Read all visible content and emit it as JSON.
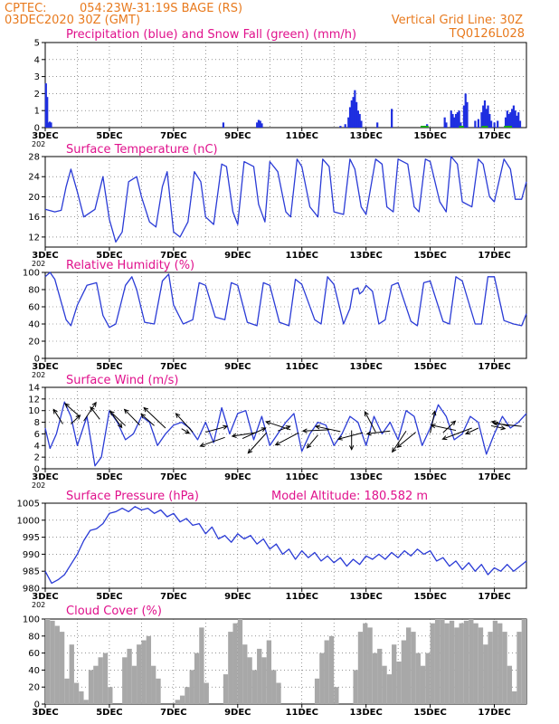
{
  "header": {
    "source": "CPTEC:",
    "location": "054:23W-31:19S  BAGE (RS)",
    "date": "03DEC2020 30Z (GMT)",
    "grid_line": "Vertical Grid Line: 30Z",
    "code": "TQ0126L028"
  },
  "colors": {
    "header": "#e87a1e",
    "title": "#e0118c",
    "line": "#2a3bd6",
    "precip": "#1f2fe0",
    "snow": "#18a818",
    "cloud": "#a8a8a8",
    "arrow": "#000000"
  },
  "x_axis": {
    "day_start": 3,
    "day_end": 18,
    "tick_days": [
      3,
      5,
      7,
      9,
      11,
      13,
      15,
      17
    ],
    "tick_labels": [
      "3DEC",
      "5DEC",
      "7DEC",
      "9DEC",
      "11DEC",
      "13DEC",
      "15DEC",
      "17DEC"
    ]
  },
  "cut_label": "202",
  "chart_data": [
    {
      "id": "precip",
      "type": "bar",
      "title": "Precipitation (blue) and Snow Fall (green) (mm/h)",
      "ylim": [
        0,
        5
      ],
      "yticks": [
        0,
        1,
        2,
        3,
        4,
        5
      ],
      "series": [
        {
          "name": "Precipitation",
          "points": [
            [
              3.02,
              2.6
            ],
            [
              3.06,
              1.8
            ],
            [
              3.1,
              0.3
            ],
            [
              3.14,
              0.35
            ],
            [
              3.18,
              0.3
            ],
            [
              8.55,
              0.3
            ],
            [
              9.6,
              0.3
            ],
            [
              9.65,
              0.45
            ],
            [
              9.7,
              0.4
            ],
            [
              9.75,
              0.25
            ],
            [
              12.2,
              0.1
            ],
            [
              12.35,
              0.2
            ],
            [
              12.45,
              0.6
            ],
            [
              12.5,
              1.2
            ],
            [
              12.55,
              1.6
            ],
            [
              12.6,
              1.8
            ],
            [
              12.65,
              2.2
            ],
            [
              12.7,
              1.5
            ],
            [
              12.75,
              1.0
            ],
            [
              12.8,
              0.8
            ],
            [
              12.85,
              0.4
            ],
            [
              13.35,
              0.3
            ],
            [
              13.8,
              1.1
            ],
            [
              14.9,
              0.2
            ],
            [
              15.45,
              0.6
            ],
            [
              15.5,
              0.3
            ],
            [
              15.65,
              1.0
            ],
            [
              15.7,
              0.8
            ],
            [
              15.75,
              0.6
            ],
            [
              15.8,
              0.8
            ],
            [
              15.85,
              0.9
            ],
            [
              15.9,
              1.0
            ],
            [
              15.95,
              0.3
            ],
            [
              16.05,
              1.3
            ],
            [
              16.1,
              2.0
            ],
            [
              16.15,
              1.5
            ],
            [
              16.4,
              0.4
            ],
            [
              16.5,
              0.5
            ],
            [
              16.6,
              0.9
            ],
            [
              16.65,
              1.3
            ],
            [
              16.7,
              1.6
            ],
            [
              16.75,
              1.1
            ],
            [
              16.8,
              1.3
            ],
            [
              16.85,
              0.8
            ],
            [
              16.9,
              0.4
            ],
            [
              17.0,
              0.3
            ],
            [
              17.1,
              0.4
            ],
            [
              17.35,
              0.6
            ],
            [
              17.4,
              1.0
            ],
            [
              17.45,
              0.8
            ],
            [
              17.5,
              0.9
            ],
            [
              17.55,
              1.1
            ],
            [
              17.6,
              1.3
            ],
            [
              17.65,
              1.0
            ],
            [
              17.7,
              0.7
            ],
            [
              17.75,
              0.9
            ],
            [
              17.8,
              0.4
            ]
          ]
        },
        {
          "name": "Snow Fall",
          "segments": [
            [
              14.7,
              14.95
            ],
            [
              15.9,
              16.05
            ],
            [
              16.6,
              16.8
            ],
            [
              17.3,
              17.55
            ]
          ]
        }
      ]
    },
    {
      "id": "temp",
      "type": "line",
      "title": "Surface Temperature (nC)",
      "ylim": [
        10,
        28
      ],
      "yticks": [
        12,
        16,
        20,
        24,
        28
      ],
      "x": [
        3.0,
        3.3,
        3.5,
        3.65,
        3.8,
        4.0,
        4.2,
        4.55,
        4.8,
        5.0,
        5.2,
        5.4,
        5.6,
        5.85,
        6.0,
        6.25,
        6.45,
        6.65,
        6.8,
        7.0,
        7.2,
        7.45,
        7.65,
        7.85,
        8.0,
        8.25,
        8.5,
        8.65,
        8.85,
        9.0,
        9.2,
        9.5,
        9.65,
        9.85,
        10.0,
        10.25,
        10.5,
        10.65,
        10.85,
        11.0,
        11.25,
        11.5,
        11.65,
        11.85,
        12.0,
        12.3,
        12.5,
        12.65,
        12.85,
        13.0,
        13.3,
        13.5,
        13.65,
        13.85,
        14.0,
        14.3,
        14.5,
        14.65,
        14.85,
        15.0,
        15.3,
        15.5,
        15.65,
        15.85,
        16.0,
        16.3,
        16.5,
        16.65,
        16.85,
        17.0,
        17.3,
        17.5,
        17.65,
        17.85,
        18.0
      ],
      "y": [
        17.5,
        17,
        17.3,
        22,
        25.5,
        21,
        16,
        17.5,
        24,
        15.5,
        11,
        13,
        23,
        24,
        20,
        15,
        14,
        22,
        25,
        13,
        12,
        15,
        25,
        23,
        16,
        14.5,
        26.5,
        26,
        17,
        14.5,
        27,
        26,
        18.5,
        15,
        27,
        25,
        17,
        16,
        27.5,
        26,
        18,
        16,
        27.5,
        26,
        17,
        16.5,
        27.5,
        25.5,
        18,
        16.5,
        27.5,
        26.5,
        18,
        17,
        27.5,
        26.5,
        18,
        17,
        27.5,
        27,
        19,
        17,
        28,
        26.5,
        19,
        18,
        27.5,
        26.5,
        20,
        19,
        27.5,
        25.5,
        19.5,
        19.5,
        23
      ]
    },
    {
      "id": "rh",
      "type": "line",
      "title": "Relative Humidity (%)",
      "ylim": [
        0,
        100
      ],
      "yticks": [
        0,
        20,
        40,
        60,
        80,
        100
      ],
      "x": [
        3.0,
        3.15,
        3.3,
        3.65,
        3.8,
        4.0,
        4.3,
        4.6,
        4.8,
        5.0,
        5.2,
        5.5,
        5.7,
        5.85,
        6.1,
        6.4,
        6.65,
        6.85,
        7.0,
        7.3,
        7.6,
        7.8,
        8.0,
        8.3,
        8.6,
        8.8,
        9.0,
        9.3,
        9.6,
        9.8,
        10.0,
        10.3,
        10.6,
        10.8,
        11.0,
        11.4,
        11.6,
        11.8,
        12.0,
        12.3,
        12.5,
        12.6,
        12.75,
        12.8,
        12.9,
        13.0,
        13.2,
        13.4,
        13.6,
        13.8,
        14.0,
        14.4,
        14.6,
        14.8,
        15.0,
        15.4,
        15.6,
        15.8,
        16.0,
        16.4,
        16.6,
        16.8,
        17.0,
        17.3,
        17.6,
        17.85,
        18.0
      ],
      "y": [
        95,
        100,
        92,
        45,
        38,
        62,
        85,
        88,
        50,
        36,
        40,
        85,
        95,
        80,
        42,
        40,
        90,
        98,
        62,
        40,
        45,
        88,
        85,
        48,
        45,
        88,
        85,
        42,
        38,
        88,
        85,
        42,
        38,
        92,
        86,
        45,
        40,
        95,
        86,
        40,
        58,
        80,
        82,
        75,
        78,
        85,
        78,
        40,
        45,
        85,
        88,
        43,
        38,
        88,
        90,
        43,
        40,
        95,
        90,
        40,
        40,
        95,
        95,
        44,
        40,
        38,
        52
      ]
    },
    {
      "id": "wind",
      "type": "line",
      "title": "Surface Wind (m/s)",
      "ylim": [
        0,
        14
      ],
      "yticks": [
        0,
        2,
        4,
        6,
        8,
        10,
        12,
        14
      ],
      "x": [
        3.0,
        3.15,
        3.35,
        3.6,
        3.8,
        4.0,
        4.3,
        4.55,
        4.75,
        5.0,
        5.25,
        5.5,
        5.75,
        6.0,
        6.25,
        6.5,
        6.75,
        7.0,
        7.25,
        7.5,
        7.75,
        8.0,
        8.25,
        8.5,
        8.75,
        9.0,
        9.25,
        9.5,
        9.75,
        10.0,
        10.25,
        10.5,
        10.75,
        11.0,
        11.25,
        11.5,
        11.75,
        12.0,
        12.25,
        12.5,
        12.75,
        13.0,
        13.25,
        13.5,
        13.75,
        14.0,
        14.25,
        14.5,
        14.75,
        15.0,
        15.25,
        15.5,
        15.75,
        16.0,
        16.25,
        16.5,
        16.75,
        17.0,
        17.25,
        17.5,
        17.75,
        18.0
      ],
      "y": [
        7,
        3.5,
        6,
        11.5,
        9,
        4,
        9,
        0.5,
        2,
        10,
        8,
        5,
        6,
        9,
        8,
        4,
        6,
        7.5,
        8,
        7,
        5,
        8,
        4.5,
        10.5,
        6,
        9.5,
        10,
        5,
        9,
        4,
        6,
        8,
        9.5,
        3,
        6,
        8,
        7.5,
        4,
        6,
        9,
        8,
        4,
        9,
        6,
        8,
        5,
        10,
        9,
        4,
        7,
        11,
        9,
        5,
        6,
        9,
        8,
        2.5,
        6,
        9,
        7,
        8,
        9.5
      ],
      "arrows": [
        [
          3.55,
          7.7,
          -0.6,
          2.5
        ],
        [
          3.8,
          7.7,
          0.6,
          1.5
        ],
        [
          4.05,
          9.1,
          -0.9,
          2.1
        ],
        [
          4.2,
          8.2,
          0.8,
          3.2
        ],
        [
          4.7,
          8.5,
          -0.6,
          2.1
        ],
        [
          5.1,
          9.3,
          0.6,
          -2.2
        ],
        [
          5.5,
          7.4,
          -1.0,
          2.5
        ],
        [
          5.95,
          7.5,
          -1.0,
          2.7
        ],
        [
          6.4,
          7.4,
          -0.85,
          2.0
        ],
        [
          6.75,
          7.0,
          -1.4,
          3.5
        ],
        [
          7.25,
          6.9,
          0.5,
          -0.8
        ],
        [
          7.6,
          6.3,
          -1.1,
          3.2
        ],
        [
          8.0,
          6.3,
          1.4,
          1.0
        ],
        [
          8.6,
          5.4,
          -1.6,
          -1.5
        ],
        [
          9.15,
          5.2,
          1.5,
          1.8
        ],
        [
          9.55,
          6.2,
          -1.5,
          -0.6
        ],
        [
          9.9,
          6.2,
          -1.2,
          -3.5
        ],
        [
          10.25,
          6.5,
          0.8,
          0.8
        ],
        [
          10.65,
          6.7,
          -1.6,
          1.4
        ],
        [
          10.9,
          6.2,
          -1.5,
          -2.1
        ],
        [
          11.5,
          5.8,
          -0.7,
          -2.2
        ],
        [
          11.85,
          6.7,
          -1.7,
          -0.2
        ],
        [
          12.2,
          6.4,
          -1.6,
          0.9
        ],
        [
          12.55,
          6.6,
          0.0,
          -3.3
        ],
        [
          12.9,
          6.2,
          -1.6,
          -1.1
        ],
        [
          13.3,
          6.3,
          -0.7,
          3.5
        ],
        [
          13.75,
          6.5,
          -1.5,
          -0.5
        ],
        [
          14.25,
          6.5,
          -0.9,
          -3.6
        ],
        [
          14.55,
          6.3,
          -1.2,
          -2.6
        ],
        [
          15.0,
          6.1,
          0.3,
          3.8
        ],
        [
          15.4,
          6.2,
          0.8,
          2.0
        ],
        [
          15.8,
          6.6,
          -1.6,
          0.9
        ],
        [
          16.3,
          7.0,
          -1.9,
          -1.9
        ],
        [
          16.5,
          7.0,
          -0.8,
          -1.0
        ],
        [
          16.9,
          7.4,
          0.9,
          -0.5
        ],
        [
          17.45,
          7.3,
          -1.1,
          0.8
        ],
        [
          17.85,
          7.3,
          -1.8,
          0.5
        ]
      ]
    },
    {
      "id": "pressure",
      "type": "line",
      "title": "Surface Pressure (hPa)",
      "subtitle": "Model Altitude: 180.582 m",
      "ylim": [
        980,
        1005
      ],
      "yticks": [
        980,
        985,
        990,
        995,
        1000,
        1005
      ],
      "x": [
        3.0,
        3.2,
        3.4,
        3.6,
        3.8,
        4.0,
        4.2,
        4.4,
        4.6,
        4.8,
        5.0,
        5.2,
        5.4,
        5.6,
        5.8,
        6.0,
        6.2,
        6.4,
        6.6,
        6.8,
        7.0,
        7.2,
        7.4,
        7.6,
        7.8,
        8.0,
        8.2,
        8.4,
        8.6,
        8.8,
        9.0,
        9.2,
        9.4,
        9.6,
        9.8,
        10.0,
        10.2,
        10.4,
        10.6,
        10.8,
        11.0,
        11.2,
        11.4,
        11.6,
        11.8,
        12.0,
        12.2,
        12.4,
        12.6,
        12.8,
        13.0,
        13.2,
        13.4,
        13.6,
        13.8,
        14.0,
        14.2,
        14.4,
        14.6,
        14.8,
        15.0,
        15.2,
        15.4,
        15.6,
        15.8,
        16.0,
        16.2,
        16.4,
        16.6,
        16.8,
        17.0,
        17.2,
        17.4,
        17.6,
        17.8,
        18.0
      ],
      "y": [
        985,
        981.5,
        982.5,
        984,
        987,
        990,
        994,
        997,
        997.5,
        999,
        1002,
        1002.5,
        1003.5,
        1002.5,
        1004,
        1003,
        1003.5,
        1002,
        1003,
        1001,
        1002,
        999.5,
        1000.5,
        998.5,
        999,
        996,
        998,
        994.5,
        995.5,
        993.5,
        996,
        994.5,
        995.5,
        993,
        994.5,
        991.5,
        993,
        990,
        991.5,
        988.5,
        991,
        989,
        990.5,
        988,
        989.5,
        987.5,
        989,
        986.5,
        988.5,
        987,
        989.5,
        988.5,
        990,
        988.5,
        990.5,
        989,
        991,
        989.5,
        991.5,
        990,
        991,
        988,
        989,
        986.5,
        988,
        985.5,
        987.5,
        985,
        987,
        984,
        986,
        985,
        987,
        985,
        986.5,
        988
      ]
    },
    {
      "id": "cloud",
      "type": "bar",
      "title": "Cloud Cover (%)",
      "ylim": [
        0,
        100
      ],
      "yticks": [
        0,
        20,
        40,
        60,
        80,
        100
      ],
      "x": [
        3.0,
        3.15,
        3.3,
        3.45,
        3.6,
        3.75,
        3.9,
        4.05,
        4.2,
        4.35,
        4.5,
        4.65,
        4.8,
        4.95,
        5.1,
        5.25,
        5.4,
        5.55,
        5.7,
        5.85,
        6.0,
        6.15,
        6.3,
        6.45,
        6.6,
        6.75,
        6.9,
        7.05,
        7.2,
        7.35,
        7.5,
        7.65,
        7.8,
        7.95,
        8.1,
        8.25,
        8.4,
        8.55,
        8.7,
        8.85,
        9.0,
        9.15,
        9.3,
        9.45,
        9.6,
        9.75,
        9.9,
        10.05,
        10.2,
        10.35,
        10.5,
        10.65,
        10.8,
        10.95,
        11.1,
        11.25,
        11.4,
        11.55,
        11.7,
        11.85,
        12.0,
        12.15,
        12.3,
        12.45,
        12.6,
        12.75,
        12.9,
        13.05,
        13.2,
        13.35,
        13.5,
        13.65,
        13.8,
        13.95,
        14.1,
        14.25,
        14.4,
        14.55,
        14.7,
        14.85,
        15.0,
        15.15,
        15.3,
        15.45,
        15.6,
        15.75,
        15.9,
        16.05,
        16.2,
        16.35,
        16.5,
        16.65,
        16.8,
        16.95,
        17.1,
        17.25,
        17.4,
        17.55,
        17.7,
        17.85
      ],
      "y": [
        100,
        98,
        92,
        85,
        30,
        70,
        25,
        15,
        5,
        40,
        45,
        55,
        60,
        20,
        0,
        0,
        55,
        65,
        45,
        70,
        75,
        80,
        45,
        30,
        0,
        0,
        0,
        5,
        10,
        20,
        40,
        60,
        90,
        25,
        0,
        0,
        0,
        35,
        85,
        95,
        100,
        70,
        55,
        40,
        65,
        55,
        75,
        40,
        25,
        0,
        0,
        0,
        0,
        0,
        0,
        0,
        30,
        60,
        75,
        80,
        20,
        0,
        0,
        0,
        40,
        85,
        95,
        90,
        60,
        65,
        45,
        35,
        70,
        50,
        75,
        90,
        85,
        60,
        45,
        60,
        95,
        100,
        100,
        95,
        98,
        90,
        95,
        98,
        100,
        95,
        90,
        70,
        85,
        98,
        95,
        85,
        45,
        15,
        85,
        100
      ]
    }
  ]
}
